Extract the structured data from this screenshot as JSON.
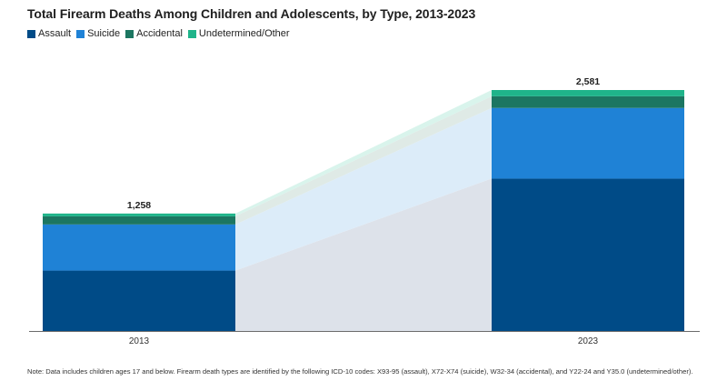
{
  "chart_data": {
    "type": "bar",
    "stacked": true,
    "title": "Total Firearm Deaths Among Children and Adolescents, by Type, 2013-2023",
    "categories": [
      "2013",
      "2023"
    ],
    "totals": [
      "1,258",
      "2,581"
    ],
    "series": [
      {
        "name": "Assault",
        "color": "#004b87",
        "values": [
          647,
          1632
        ]
      },
      {
        "name": "Suicide",
        "color": "#1f82d6",
        "values": [
          494,
          757
        ]
      },
      {
        "name": "Accidental",
        "color": "#1c7661",
        "values": [
          87,
          125
        ]
      },
      {
        "name": "Undetermined/Other",
        "color": "#1fb48a",
        "values": [
          30,
          67
        ]
      }
    ],
    "ylim": [
      0,
      2600
    ],
    "xlabel": "",
    "ylabel": "",
    "legend": "top-left",
    "note": "Note: Data includes children ages 17 and below. Firearm death types are identified by the following ICD-10 codes: X93-95 (assault), X72-X74 (suicide), W32-34 (accidental), and Y22-24 and Y35.0 (undetermined/other)."
  }
}
